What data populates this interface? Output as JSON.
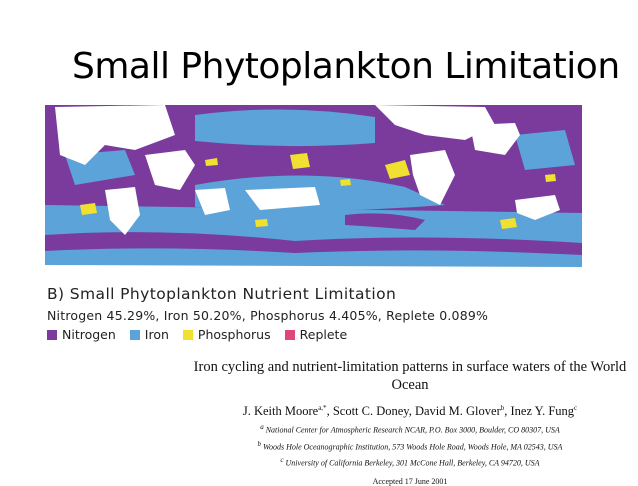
{
  "slide": {
    "title": "Small Phytoplankton Limitation"
  },
  "figure": {
    "label": "B) Small Phytoplankton Nutrient Limitation",
    "stats": "Nitrogen 45.29%, Iron 50.20%, Phosphorus 4.405%, Replete 0.089%",
    "legend": [
      {
        "label": "Nitrogen",
        "color": "#7a3b9c"
      },
      {
        "label": "Iron",
        "color": "#5ba3d9"
      },
      {
        "label": "Phosphorus",
        "color": "#f0e030"
      },
      {
        "label": "Replete",
        "color": "#e0457b"
      }
    ]
  },
  "paper": {
    "title": "Iron cycling and nutrient-limitation patterns in surface waters of the World Ocean",
    "authors": {
      "a1": "J. Keith Moore",
      "a1_sup": "a,*",
      "a2": ", Scott C. Doney, David M. Glover",
      "a2_sup": "b",
      "a3": ", Inez Y. Fung",
      "a3_sup": "c"
    },
    "affiliations": [
      {
        "sup": "a",
        "text": "National Center for Atmospheric Research NCAR, P.O. Box 3000, Boulder, CO 80307, USA"
      },
      {
        "sup": "b",
        "text": "Woods Hole Oceanographic Institution, 573 Woods Hole Road, Woods Hole, MA 02543, USA"
      },
      {
        "sup": "c",
        "text": "University of California Berkeley, 301 McCone Hall, Berkeley, CA 94720, USA"
      }
    ],
    "accepted": "Accepted 17 June 2001"
  }
}
